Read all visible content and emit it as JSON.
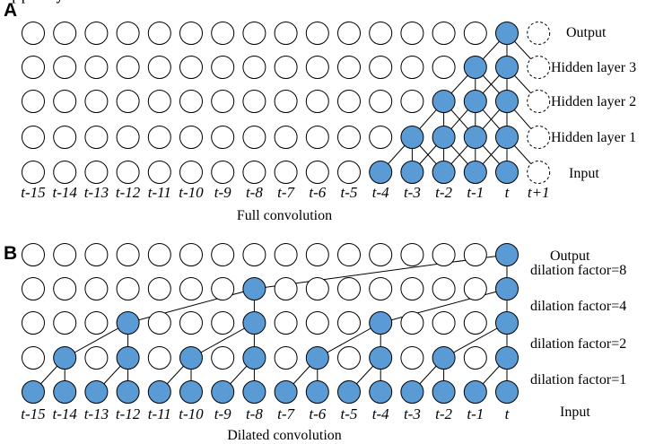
{
  "panel_a": {
    "letter": "A",
    "caption": "Full convolution",
    "layers": [
      {
        "label": "Output",
        "active": [
          15
        ],
        "dashed": [
          16
        ]
      },
      {
        "label": "Hidden layer 3",
        "active": [
          14,
          15
        ],
        "dashed": [
          16
        ]
      },
      {
        "label": "Hidden layer 2",
        "active": [
          13,
          14,
          15
        ],
        "dashed": [
          16
        ]
      },
      {
        "label": "Hidden layer 1",
        "active": [
          12,
          13,
          14,
          15
        ],
        "dashed": [
          16
        ]
      },
      {
        "label": "Input",
        "active": [
          11,
          12,
          13,
          14,
          15
        ],
        "dashed": [
          16
        ]
      }
    ],
    "ticks": [
      "t-15",
      "t-14",
      "t-13",
      "t-12",
      "t-11",
      "t-10",
      "t-9",
      "t-8",
      "t-7",
      "t-6",
      "t-5",
      "t-4",
      "t-3",
      "t-2",
      "t-1",
      "t",
      "t+1"
    ]
  },
  "panel_b": {
    "letter": "B",
    "caption": "Dilated convolution",
    "layers": [
      {
        "label": "Output",
        "active": [
          15
        ]
      },
      {
        "label": "",
        "active": [
          7,
          15
        ]
      },
      {
        "label": "",
        "active": [
          3,
          7,
          11,
          15
        ]
      },
      {
        "label": "",
        "active": [
          1,
          3,
          5,
          7,
          9,
          11,
          13,
          15
        ]
      },
      {
        "label": "Input",
        "active": [
          0,
          1,
          2,
          3,
          4,
          5,
          6,
          7,
          8,
          9,
          10,
          11,
          12,
          13,
          14,
          15
        ]
      }
    ],
    "dilation_labels": [
      "dilation factor=8",
      "dilation factor=4",
      "dilation factor=2",
      "dilation factor=1"
    ],
    "ticks": [
      "t-15",
      "t-14",
      "t-13",
      "t-12",
      "t-11",
      "t-10",
      "t-9",
      "t-8",
      "t-7",
      "t-6",
      "t-5",
      "t-4",
      "t-3",
      "t-2",
      "t-1",
      "t"
    ]
  },
  "colors": {
    "active_fill": "#5b9bd5",
    "inactive_fill": "#ffffff",
    "stroke": "#000000"
  }
}
